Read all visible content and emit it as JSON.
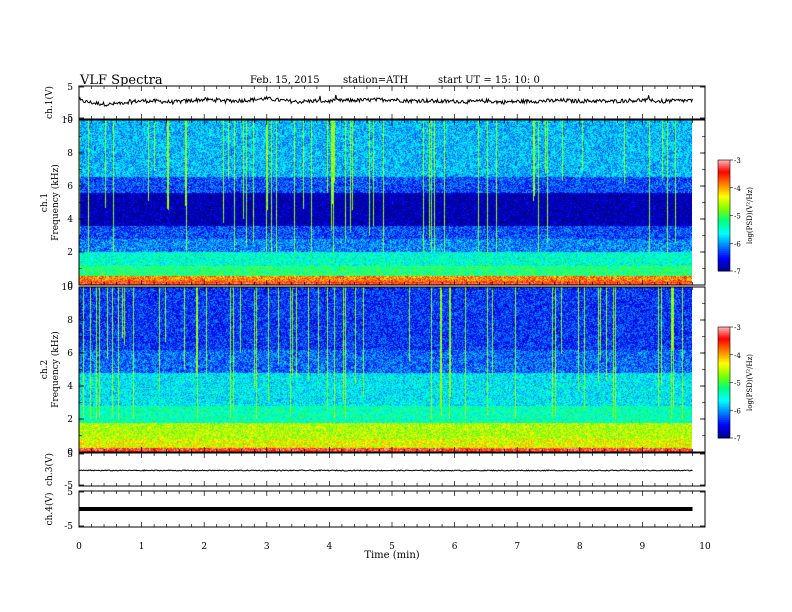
{
  "header": {
    "title": "VLF  Spectra",
    "date": "Feb. 15, 2015",
    "station": "station=ATH",
    "start": "start  UT =   15: 10: 0"
  },
  "chart_data": [
    {
      "type": "line",
      "name": "ch1-waveform",
      "ylabel": "ch.1(V)",
      "ylim": [
        -5,
        5
      ],
      "yticks": [
        "5",
        "-5"
      ],
      "xlim": [
        0,
        10
      ],
      "x": [
        0,
        0.25,
        0.5,
        0.75,
        1.0,
        1.25,
        1.5,
        1.75,
        2.0,
        2.25,
        2.5,
        2.75,
        3.0,
        3.25,
        3.5,
        3.75,
        4.0,
        4.25,
        4.5,
        4.75,
        5.0,
        5.25,
        5.5,
        5.75,
        6.0,
        6.25,
        6.5,
        6.75,
        7.0,
        7.25,
        7.5,
        7.75,
        8.0,
        8.25,
        8.5,
        8.75,
        9.0,
        9.25,
        9.5,
        9.8
      ],
      "y": [
        0.6,
        -0.2,
        -0.6,
        0.1,
        0.5,
        0.4,
        0.1,
        0.5,
        0.9,
        0.7,
        0.5,
        0.8,
        1.2,
        0.6,
        0.2,
        0.5,
        0.4,
        0.6,
        0.7,
        0.8,
        0.9,
        0.5,
        0.6,
        0.3,
        0.4,
        0.2,
        0.5,
        0.1,
        0.3,
        0.4,
        0.5,
        0.6,
        0.4,
        0.5,
        0.3,
        0.6,
        0.7,
        0.4,
        0.5,
        0.6
      ]
    },
    {
      "type": "heatmap",
      "name": "ch1-spectrogram",
      "ylabel": "ch.1\nFrequency (kHz)",
      "ylim": [
        0,
        10
      ],
      "yticks": [
        "0",
        "2",
        "4",
        "6",
        "8",
        "10"
      ],
      "xlim": [
        0,
        10
      ],
      "data_end_min": 9.8,
      "levels_by_frequency": [
        {
          "f": [
            0,
            0.3
          ],
          "level": -3.5
        },
        {
          "f": [
            0.3,
            0.6
          ],
          "level": -3.9
        },
        {
          "f": [
            0.6,
            1.2
          ],
          "level": -5.2
        },
        {
          "f": [
            1.2,
            2.0
          ],
          "level": -5.5
        },
        {
          "f": [
            2.0,
            2.8
          ],
          "level": -6.1
        },
        {
          "f": [
            2.8,
            3.6
          ],
          "level": -6.3
        },
        {
          "f": [
            3.6,
            5.6
          ],
          "level": -6.9
        },
        {
          "f": [
            5.6,
            6.6
          ],
          "level": -6.3
        },
        {
          "f": [
            6.6,
            10
          ],
          "level": -5.9
        }
      ],
      "colorbar": {
        "label": "log(PSD)(V²/Hz)",
        "ticks": [
          "-3",
          "-4",
          "-5",
          "-6",
          "-7"
        ],
        "range": [
          -7,
          -3
        ]
      }
    },
    {
      "type": "heatmap",
      "name": "ch2-spectrogram",
      "ylabel": "ch.2\nFrequency (kHz)",
      "ylim": [
        0,
        10
      ],
      "yticks": [
        "0",
        "2",
        "4",
        "6",
        "8",
        "10"
      ],
      "xlim": [
        0,
        10
      ],
      "data_end_min": 9.8,
      "levels_by_frequency": [
        {
          "f": [
            0,
            0.3
          ],
          "level": -3.4
        },
        {
          "f": [
            0.3,
            0.8
          ],
          "level": -4.4
        },
        {
          "f": [
            0.8,
            1.8
          ],
          "level": -4.6
        },
        {
          "f": [
            1.8,
            2.8
          ],
          "level": -5.4
        },
        {
          "f": [
            2.8,
            4.8
          ],
          "level": -5.7
        },
        {
          "f": [
            4.8,
            6.2
          ],
          "level": -6.2
        },
        {
          "f": [
            6.2,
            10
          ],
          "level": -6.4
        }
      ],
      "colorbar": {
        "label": "log(PSD)(V²/Hz)",
        "ticks": [
          "-3",
          "-4",
          "-5",
          "-6",
          "-7"
        ],
        "range": [
          -7,
          -3
        ]
      }
    },
    {
      "type": "line",
      "name": "ch3-waveform",
      "ylabel": "ch.3(V)",
      "ylim": [
        -5,
        5
      ],
      "yticks": [
        "5",
        "-5"
      ],
      "xlim": [
        0,
        10
      ],
      "x": [
        0,
        9.8
      ],
      "y": [
        -0.3,
        -0.3
      ]
    },
    {
      "type": "line",
      "name": "ch4-waveform",
      "ylabel": "ch.4(V)",
      "ylim": [
        -5,
        5
      ],
      "yticks": [
        "5",
        "-5"
      ],
      "xlim": [
        0,
        10
      ],
      "x": [
        0,
        9.8
      ],
      "y": [
        0,
        0
      ]
    }
  ],
  "x_axis": {
    "label": "Time  (min)",
    "ticks": [
      "0",
      "1",
      "2",
      "3",
      "4",
      "5",
      "6",
      "7",
      "8",
      "9",
      "10"
    ]
  },
  "colors": {
    "colormap": [
      "#000000",
      "#00008b",
      "#0000ff",
      "#0080ff",
      "#00ffff",
      "#00ff80",
      "#80ff00",
      "#ffff00",
      "#ff8000",
      "#ff0000",
      "#ffc0c0",
      "#ffffff"
    ]
  }
}
